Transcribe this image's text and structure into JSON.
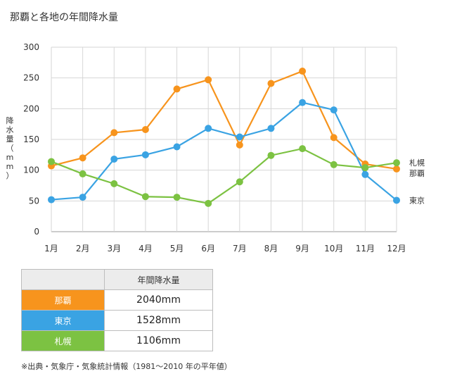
{
  "title": "那覇と各地の年間降水量",
  "chart_data": {
    "type": "line",
    "categories": [
      "1月",
      "2月",
      "3月",
      "4月",
      "5月",
      "6月",
      "7月",
      "8月",
      "9月",
      "10月",
      "11月",
      "12月"
    ],
    "ylabel": "降水量（mm）",
    "ylim": [
      0,
      300
    ],
    "yticks": [
      "0",
      "50",
      "100",
      "150",
      "200",
      "250",
      "300"
    ],
    "grid": true,
    "series": [
      {
        "name": "那覇",
        "color": "#f7941d",
        "values": [
          107,
          120,
          161,
          166,
          232,
          247,
          141,
          241,
          261,
          153,
          110,
          102
        ]
      },
      {
        "name": "東京",
        "color": "#3aa3e3",
        "values": [
          52,
          56,
          118,
          125,
          138,
          168,
          154,
          168,
          210,
          198,
          93,
          51
        ]
      },
      {
        "name": "札幌",
        "color": "#7cc242",
        "values": [
          114,
          94,
          78,
          57,
          56,
          46,
          81,
          124,
          135,
          109,
          104,
          112
        ]
      }
    ]
  },
  "table": {
    "header": "年間降水量",
    "rows": [
      {
        "name": "那覇",
        "value": "2040mm",
        "color": "#f7941d"
      },
      {
        "name": "東京",
        "value": "1528mm",
        "color": "#3aa3e3"
      },
      {
        "name": "札幌",
        "value": "1106mm",
        "color": "#7cc242"
      }
    ]
  },
  "footnote": "※出典・気象庁・気象統計情報（1981〜2010 年の平年値）"
}
